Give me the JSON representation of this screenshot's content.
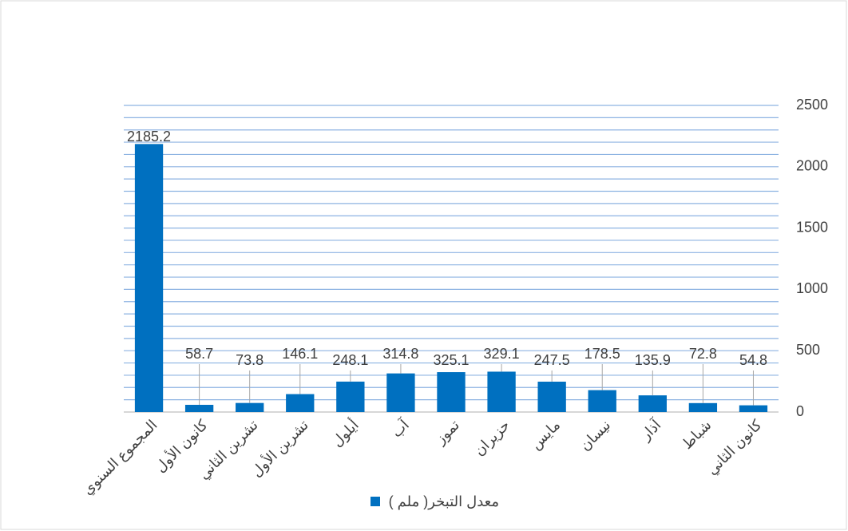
{
  "chart_data": {
    "type": "bar",
    "categories": [
      "المجموع السنوي",
      "كانون الأول",
      "تشرين الثاني",
      "تشرين الأول",
      "أيلول",
      "آب",
      "تموز",
      "حزيران",
      "مايس",
      "نيسان",
      "آذار",
      "شباط",
      "كانون الثاني"
    ],
    "series": [
      {
        "name": "معدل التبخر( ملم )",
        "color": "#0070c0",
        "values": [
          2185.2,
          58.7,
          73.8,
          146.1,
          248.1,
          314.8,
          325.1,
          329.1,
          247.5,
          178.5,
          135.9,
          72.8,
          54.8
        ]
      }
    ],
    "ylim": [
      0,
      2500
    ],
    "yticks": [
      0,
      500,
      1000,
      1500,
      2000,
      2500
    ],
    "yminorticks": [
      100,
      200,
      300,
      400,
      600,
      700,
      800,
      900,
      1100,
      1200,
      1300,
      1400,
      1600,
      1700,
      1800,
      1900,
      2100,
      2200,
      2300,
      2400
    ],
    "grid": true,
    "yaxis_side": "right",
    "legend": "bottom"
  }
}
